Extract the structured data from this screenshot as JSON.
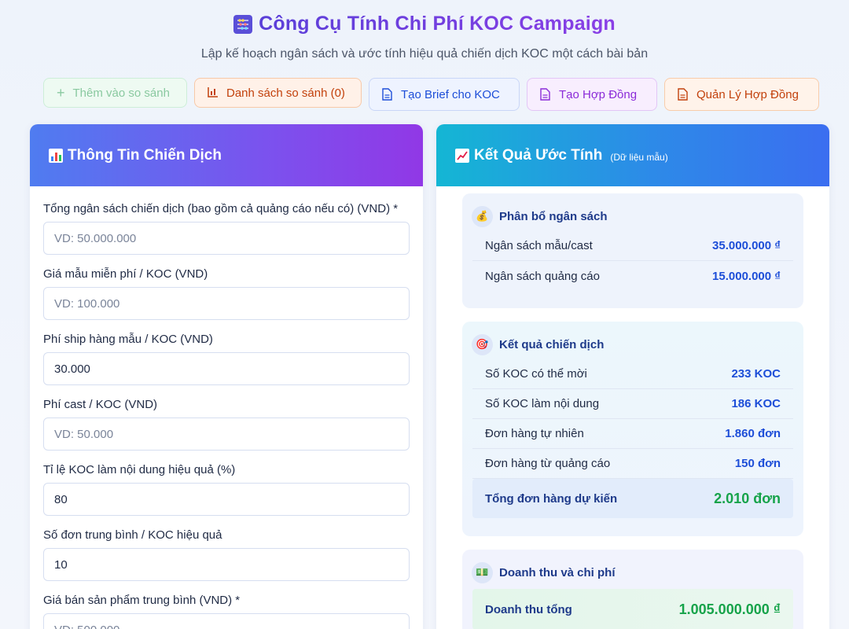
{
  "header": {
    "title": "Công Cụ Tính Chi Phí KOC Campaign",
    "subtitle": "Lập kế hoạch ngân sách và ước tính hiệu quả chiến dịch KOC một cách bài bản"
  },
  "toolbar": {
    "add_compare": "Thêm vào so sánh",
    "compare_list": "Danh sách so sánh (0)",
    "create_brief": "Tạo Brief cho KOC",
    "create_contract": "Tạo Hợp Đồng",
    "manage_contracts": "Quản Lý Hợp Đồng"
  },
  "left_panel": {
    "title": "Thông Tin Chiến Dịch",
    "fields": [
      {
        "label": "Tổng ngân sách chiến dịch (bao gồm cả quảng cáo nếu có) (VND) *",
        "value": "",
        "placeholder": "VD: 50.000.000"
      },
      {
        "label": "Giá mẫu miễn phí / KOC (VND)",
        "value": "",
        "placeholder": "VD: 100.000"
      },
      {
        "label": "Phí ship hàng mẫu / KOC (VND)",
        "value": "30.000",
        "placeholder": ""
      },
      {
        "label": "Phí cast / KOC (VND)",
        "value": "",
        "placeholder": "VD: 50.000"
      },
      {
        "label": "Tỉ lệ KOC làm nội dung hiệu quả (%)",
        "value": "80",
        "placeholder": ""
      },
      {
        "label": "Số đơn trung bình / KOC hiệu quả",
        "value": "10",
        "placeholder": ""
      },
      {
        "label": "Giá bán sản phẩm trung bình (VND) *",
        "value": "",
        "placeholder": "VD: 500.000"
      }
    ]
  },
  "right_panel": {
    "title": "Kết Quả Ước Tính",
    "tag": "(Dữ liệu mẫu)",
    "budget": {
      "title": "Phân bổ ngân sách",
      "rows": [
        {
          "k": "Ngân sách mẫu/cast",
          "v": "35.000.000 ₫"
        },
        {
          "k": "Ngân sách quảng cáo",
          "v": "15.000.000 ₫"
        }
      ]
    },
    "result": {
      "title": "Kết quả chiến dịch",
      "rows": [
        {
          "k": "Số KOC có thể mời",
          "v": "233 KOC"
        },
        {
          "k": "Số KOC làm nội dung",
          "v": "186 KOC"
        },
        {
          "k": "Đơn hàng tự nhiên",
          "v": "1.860 đơn"
        },
        {
          "k": "Đơn hàng từ quảng cáo",
          "v": "150 đơn"
        }
      ],
      "total": {
        "k": "Tổng đơn hàng dự kiến",
        "v": "2.010 đơn"
      }
    },
    "revenue": {
      "title": "Doanh thu và chi phí",
      "total": {
        "k": "Doanh thu tổng",
        "v": "1.005.000.000 ₫"
      }
    }
  }
}
